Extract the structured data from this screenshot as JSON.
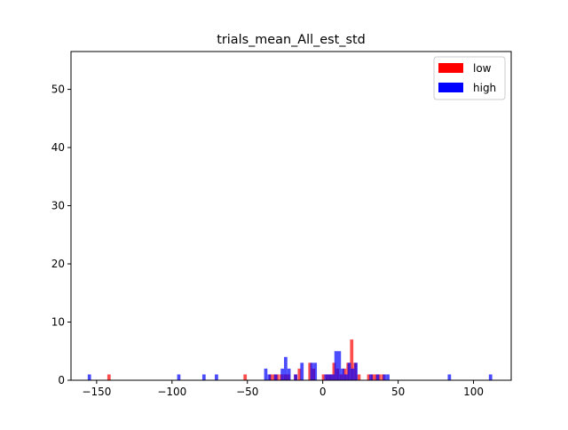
{
  "chart_data": {
    "type": "histogram",
    "title": "trials_mean_All_est_std",
    "xlabel": "",
    "ylabel": "",
    "xlim": [
      -167,
      125
    ],
    "ylim": [
      0,
      56.5
    ],
    "xticks": [
      -150,
      -100,
      -50,
      0,
      50,
      100
    ],
    "yticks": [
      0,
      10,
      20,
      30,
      40,
      50
    ],
    "xtick_labels": [
      "−150",
      "−100",
      "−50",
      "0",
      "50",
      "100"
    ],
    "ytick_labels": [
      "0",
      "10",
      "20",
      "30",
      "40",
      "50"
    ],
    "legend": {
      "position": "top-right",
      "entries": [
        "low",
        "high"
      ]
    },
    "grid": false,
    "series": [
      {
        "name": "low",
        "color": "#ff0000",
        "alpha": 0.7,
        "bins": [
          {
            "x": -141.8,
            "y": 1
          },
          {
            "x": -51.5,
            "y": 1
          },
          {
            "x": -34.5,
            "y": 1
          },
          {
            "x": -32.2,
            "y": 1
          },
          {
            "x": -30.0,
            "y": 1
          },
          {
            "x": -27.5,
            "y": 1
          },
          {
            "x": -25.0,
            "y": 1
          },
          {
            "x": -22.8,
            "y": 1
          },
          {
            "x": -18.0,
            "y": 1
          },
          {
            "x": -15.5,
            "y": 2
          },
          {
            "x": -8.5,
            "y": 3
          },
          {
            "x": -6.2,
            "y": 2
          },
          {
            "x": 0.5,
            "y": 1
          },
          {
            "x": 3.0,
            "y": 1
          },
          {
            "x": 5.2,
            "y": 1
          },
          {
            "x": 7.5,
            "y": 3
          },
          {
            "x": 9.8,
            "y": 2
          },
          {
            "x": 12.2,
            "y": 1
          },
          {
            "x": 14.5,
            "y": 2
          },
          {
            "x": 16.8,
            "y": 3
          },
          {
            "x": 19.2,
            "y": 7
          },
          {
            "x": 21.5,
            "y": 3
          },
          {
            "x": 24.0,
            "y": 1
          },
          {
            "x": 30.5,
            "y": 1
          },
          {
            "x": 33.0,
            "y": 1
          },
          {
            "x": 35.2,
            "y": 1
          },
          {
            "x": 37.6,
            "y": 1
          },
          {
            "x": 40.0,
            "y": 1
          }
        ]
      },
      {
        "name": "high",
        "color": "#0000ff",
        "alpha": 0.7,
        "bins": [
          {
            "x": -154.8,
            "y": 1
          },
          {
            "x": -95.5,
            "y": 1
          },
          {
            "x": -78.8,
            "y": 1
          },
          {
            "x": -70.5,
            "y": 1
          },
          {
            "x": -37.8,
            "y": 2
          },
          {
            "x": -35.5,
            "y": 1
          },
          {
            "x": -31.2,
            "y": 1
          },
          {
            "x": -26.8,
            "y": 2
          },
          {
            "x": -24.6,
            "y": 4
          },
          {
            "x": -22.4,
            "y": 2
          },
          {
            "x": -18.0,
            "y": 1
          },
          {
            "x": -13.8,
            "y": 3
          },
          {
            "x": -7.2,
            "y": 3
          },
          {
            "x": -5.0,
            "y": 3
          },
          {
            "x": 2.2,
            "y": 1
          },
          {
            "x": 4.4,
            "y": 1
          },
          {
            "x": 6.6,
            "y": 1
          },
          {
            "x": 8.8,
            "y": 5
          },
          {
            "x": 11.0,
            "y": 5
          },
          {
            "x": 13.2,
            "y": 2
          },
          {
            "x": 15.4,
            "y": 1
          },
          {
            "x": 17.6,
            "y": 3
          },
          {
            "x": 19.8,
            "y": 2
          },
          {
            "x": 22.0,
            "y": 3
          },
          {
            "x": 32.0,
            "y": 1
          },
          {
            "x": 36.4,
            "y": 1
          },
          {
            "x": 41.0,
            "y": 1
          },
          {
            "x": 43.2,
            "y": 1
          },
          {
            "x": 84.0,
            "y": 1
          },
          {
            "x": 111.3,
            "y": 1
          }
        ]
      }
    ]
  }
}
